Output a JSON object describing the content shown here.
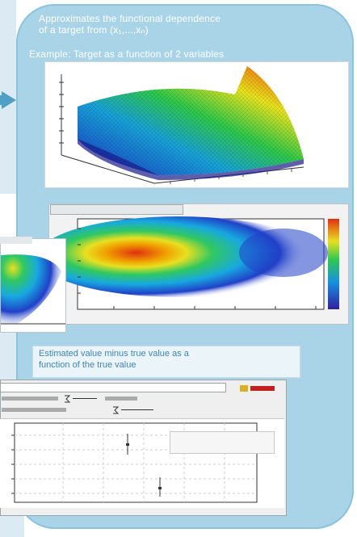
{
  "captions": {
    "line1": "Approximates the functional dependence",
    "line2": "of a target from (x₁,...,xₙ)",
    "example": "Example: Target as a function of 2 variables"
  },
  "estimate": {
    "line1": "Estimated value minus true value as a",
    "line2": "function of the true value"
  },
  "colors": {
    "panel": "#a9d4e8",
    "arrow": "#4f9fc7",
    "estimate_text": "#3c86b2"
  },
  "icons": {
    "arrow": "right-arrow-icon"
  }
}
